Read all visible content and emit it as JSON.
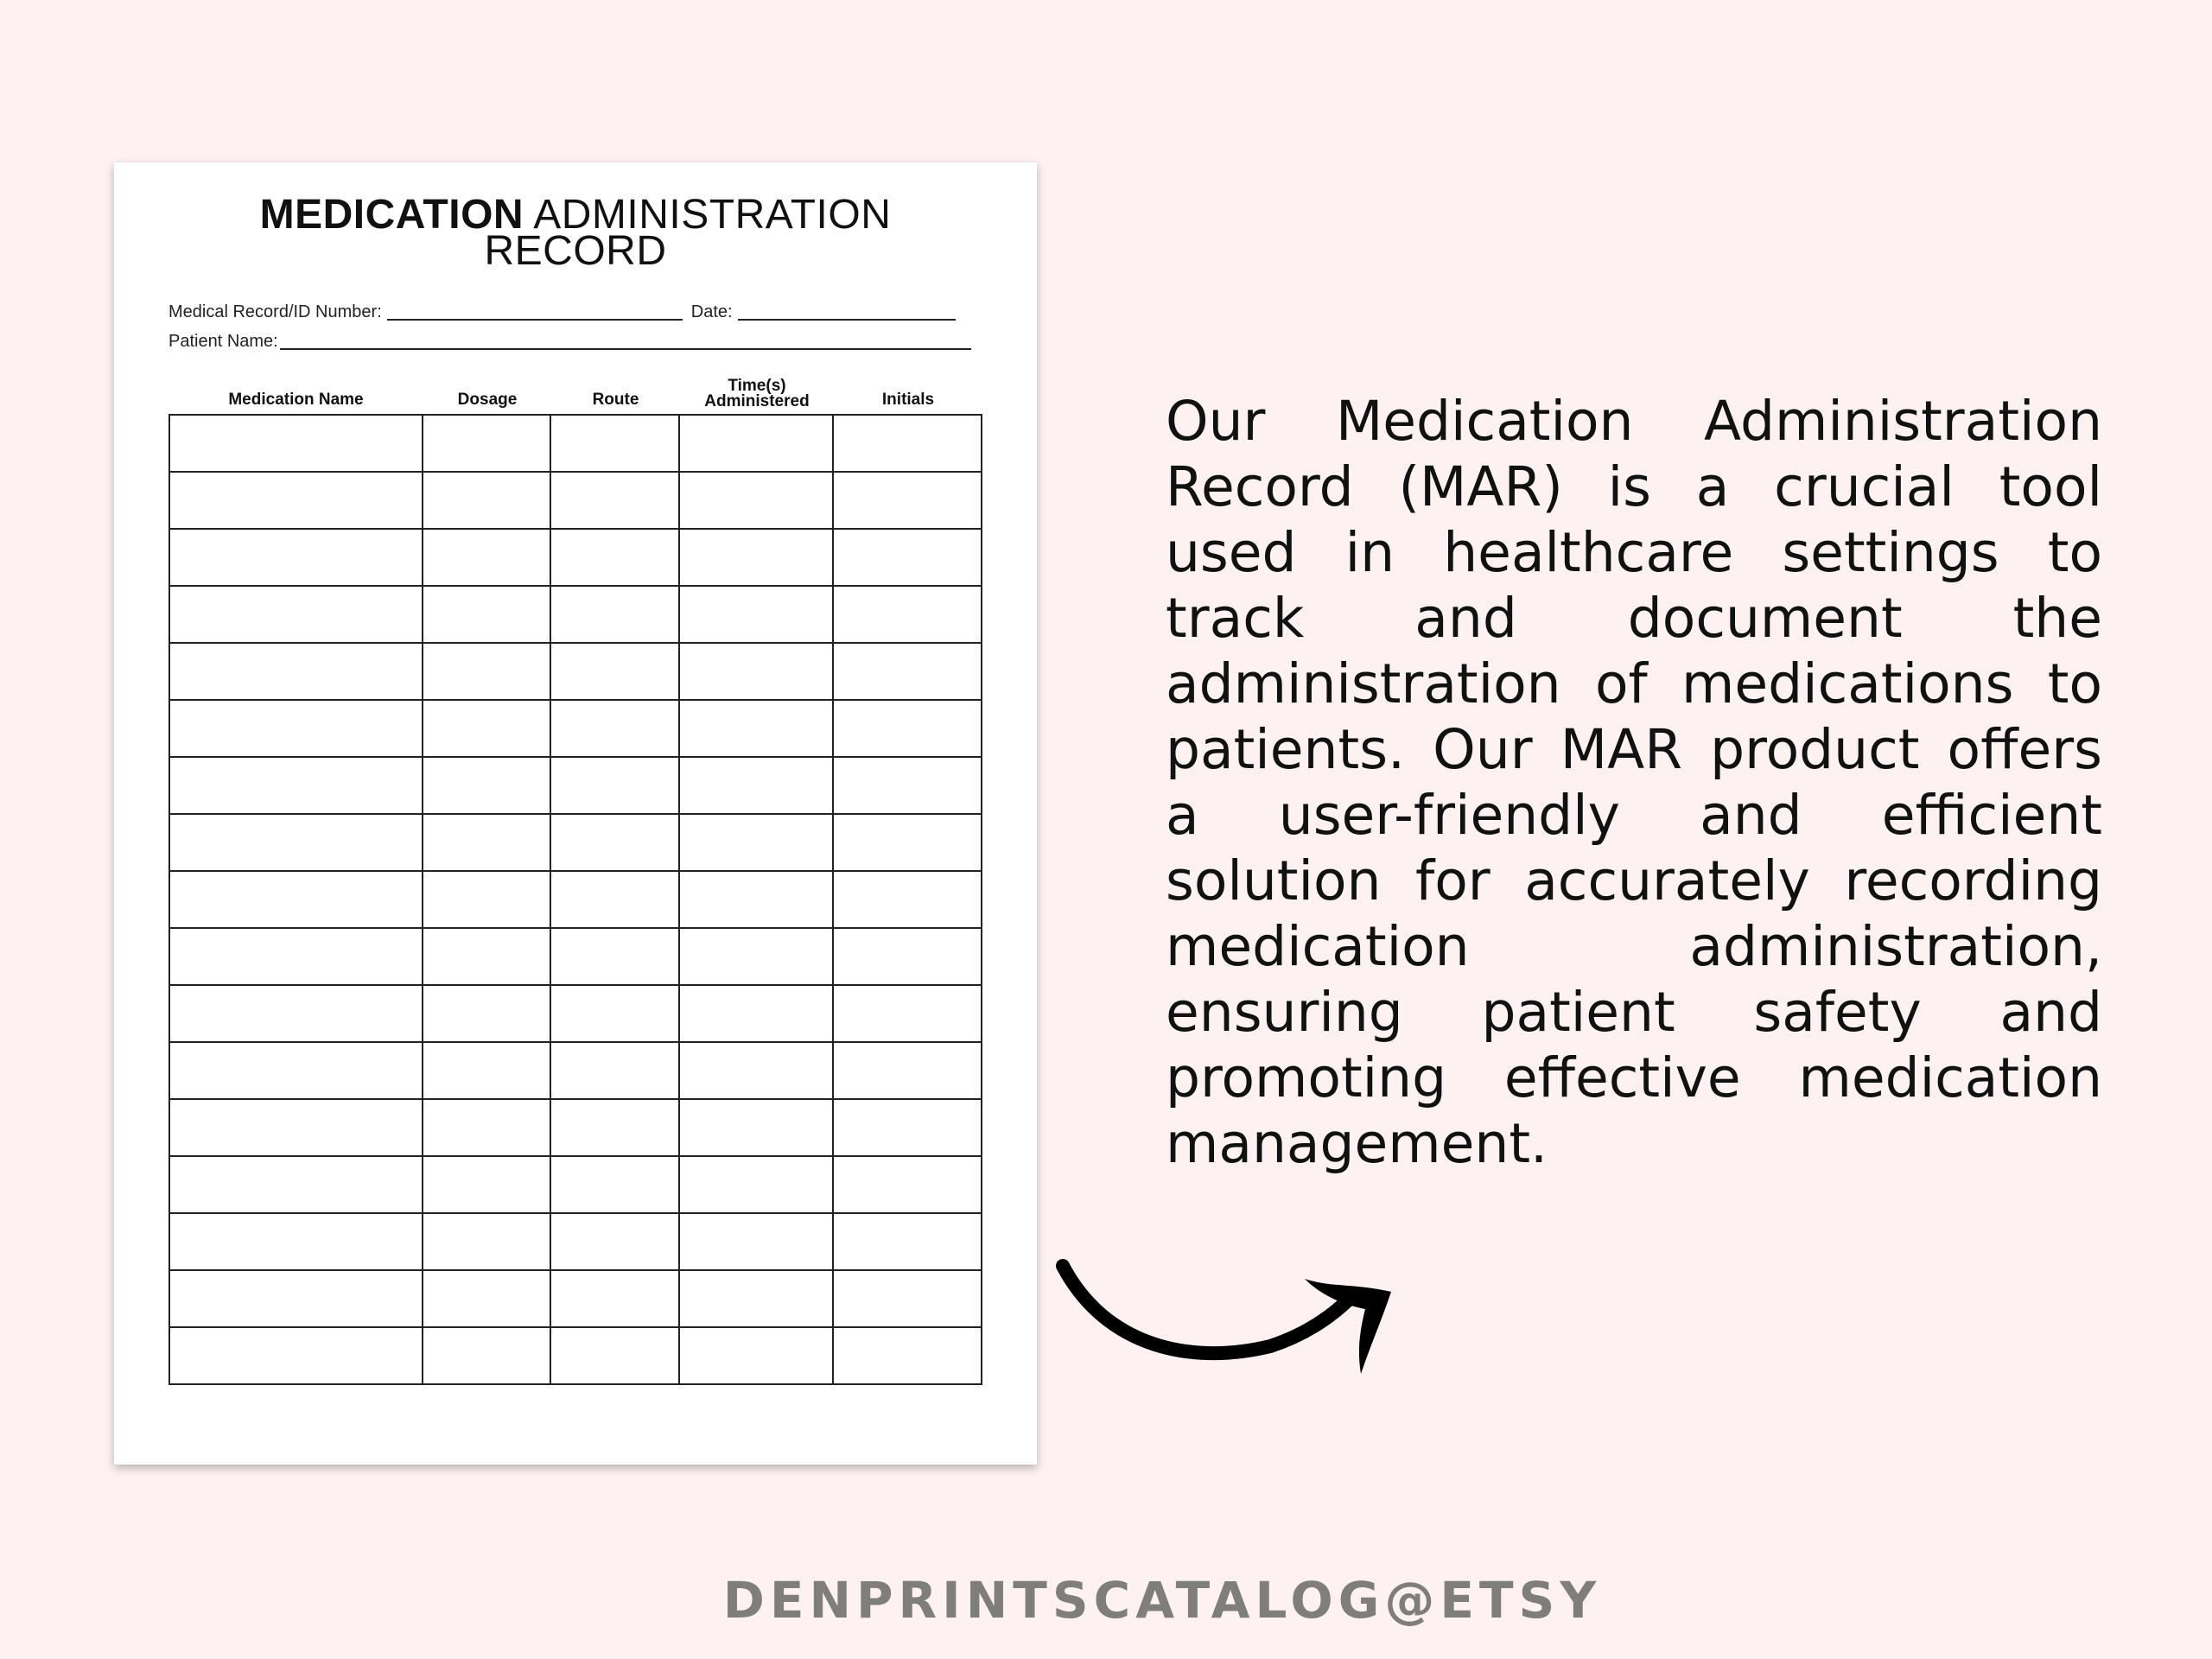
{
  "document": {
    "title_bold": "MEDICATION",
    "title_rest": "ADMINISTRATION",
    "title_line2": "RECORD",
    "field_id": "Medical Record/ID Number:",
    "field_date": "Date:",
    "field_patient": "Patient Name:",
    "columns": [
      "Medication Name",
      "Dosage",
      "Route",
      "Time(s) Administered",
      "Initials"
    ],
    "row_count": 17
  },
  "description": {
    "lines": [
      "Our Medication Administration",
      "Record (MAR) is a crucial tool",
      "used in healthcare settings to",
      "track and document the",
      "administration of medications to",
      "patients. Our MAR product offers",
      "a user-friendly and efficient",
      "solution for accurately recording",
      "medication administration,",
      "ensuring patient safety and",
      "promoting effective medication",
      "management."
    ]
  },
  "footer": {
    "shop": "DENPRINTSCATALOG@ETSY"
  },
  "colors": {
    "background": "#fdf2f1",
    "footer_text": "#807d7d"
  },
  "icons": {
    "arrow": "curved-arrow-right-icon"
  }
}
